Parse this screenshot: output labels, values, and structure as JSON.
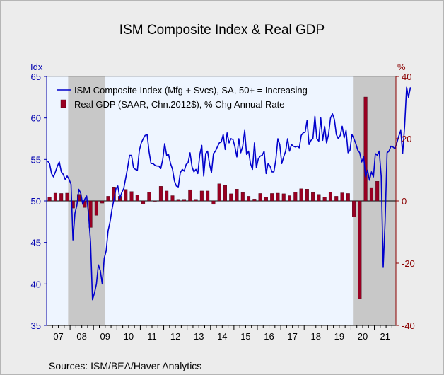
{
  "title": "ISM Composite Index & Real GDP",
  "source": "Sources:   ISM/BEA/Haver Analytics",
  "colors": {
    "ism_line": "#0000cc",
    "gdp_bar": "#990022",
    "recession": "#c8c8c8",
    "plot_bg": "#eef5ff"
  },
  "chart_data": {
    "type": "bar+line",
    "left_axis": {
      "unit": "Idx",
      "ylim": [
        35,
        65
      ],
      "ticks": [
        35,
        40,
        45,
        50,
        55,
        60,
        65
      ]
    },
    "right_axis": {
      "unit": "%",
      "ylim": [
        -40,
        40
      ],
      "ticks": [
        -40,
        -20,
        0,
        20,
        40
      ]
    },
    "x_axis": {
      "year_labels": [
        "07",
        "08",
        "09",
        "10",
        "11",
        "12",
        "13",
        "14",
        "15",
        "16",
        "17",
        "18",
        "19",
        "20",
        "21"
      ]
    },
    "recessions": [
      [
        "2007-12",
        "2009-06"
      ],
      [
        "2020-02",
        "2021-12"
      ]
    ],
    "series": [
      {
        "name": "ISM Composite Index (Mfg + Svcs), SA, 50+ = Increasing",
        "type": "line",
        "axis": "left",
        "start": "2007-01",
        "frequency": "monthly",
        "values": [
          54.8,
          54.5,
          53.3,
          52.9,
          53.5,
          54.2,
          54.7,
          53.5,
          53.2,
          52.6,
          53.0,
          52.6,
          52.0,
          45.3,
          48.5,
          49.5,
          51.4,
          50.9,
          49.6,
          50.2,
          50.6,
          48.3,
          45.0,
          38.1,
          38.9,
          40.0,
          42.3,
          41.6,
          40.0,
          43.1,
          44.0,
          46.4,
          47.5,
          49.0,
          50.2,
          51.5,
          51.8,
          50.3,
          51.0,
          51.5,
          52.7,
          54.0,
          55.5,
          55.5,
          54.0,
          53.8,
          53.7,
          56.1,
          57.0,
          57.5,
          57.9,
          58.0,
          55.9,
          54.5,
          54.5,
          54.3,
          54.2,
          54.2,
          53.9,
          55.0,
          56.9,
          55.5,
          55.6,
          54.5,
          53.8,
          52.4,
          51.8,
          51.7,
          53.4,
          53.8,
          53.6,
          54.4,
          54.6,
          55.8,
          54.1,
          53.5,
          53.8,
          53.3,
          55.6,
          56.7,
          53.0,
          55.7,
          56.0,
          54.4,
          53.4,
          55.7,
          56.0,
          56.5,
          57.0,
          57.1,
          58.0,
          56.2,
          58.2,
          57.0,
          57.5,
          57.4,
          56.5,
          55.3,
          57.5,
          55.8,
          56.6,
          58.5,
          55.6,
          56.0,
          54.5,
          53.8,
          57.0,
          54.0,
          55.1,
          55.4,
          55.5,
          56.0,
          53.3,
          54.5,
          54.2,
          53.5,
          53.5,
          55.0,
          57.5,
          56.8,
          54.5,
          55.3,
          56.0,
          57.5,
          56.0,
          56.8,
          56.6,
          56.5,
          56.6,
          56.4,
          57.9,
          58.2,
          58.3,
          59.7,
          56.8,
          57.3,
          57.5,
          60.2,
          57.5,
          57.2,
          60.0,
          57.3,
          59.0,
          57.0,
          58.0,
          60.0,
          60.5,
          59.8,
          58.0,
          57.5,
          57.9,
          59.0,
          57.6,
          58.5,
          55.8,
          56.1,
          58.0,
          57.5,
          56.9,
          56.1,
          55.8,
          54.7,
          55.3,
          52.9,
          53.7,
          52.5,
          53.5,
          52.9,
          55.7,
          55.5,
          56.0,
          53.0,
          42.0,
          47.5,
          55.8,
          56.0,
          56.6,
          56.5,
          56.3,
          57.0,
          57.8,
          58.5,
          55.7,
          59.0,
          63.7,
          62.5,
          63.7
        ]
      },
      {
        "name": "Real GDP (SAAR, Chn.2012$), % Chg Annual Rate",
        "type": "bar",
        "axis": "right",
        "start": "2007-Q1",
        "frequency": "quarterly",
        "values": [
          1.2,
          2.5,
          2.4,
          2.5,
          -2.3,
          2.1,
          -2.1,
          -8.5,
          -4.6,
          -0.7,
          1.5,
          4.5,
          1.5,
          3.7,
          3.0,
          2.0,
          -1.0,
          2.9,
          -0.1,
          4.7,
          3.2,
          1.7,
          0.5,
          0.5,
          3.6,
          0.5,
          3.2,
          3.2,
          -1.1,
          5.5,
          5.0,
          2.3,
          3.8,
          2.7,
          1.5,
          0.6,
          2.4,
          1.2,
          2.4,
          2.5,
          2.3,
          1.7,
          2.9,
          3.9,
          3.8,
          2.7,
          2.1,
          1.3,
          2.9,
          1.5,
          2.6,
          2.4,
          -5.1,
          -31.4,
          33.4,
          4.3,
          6.3
        ]
      }
    ]
  }
}
